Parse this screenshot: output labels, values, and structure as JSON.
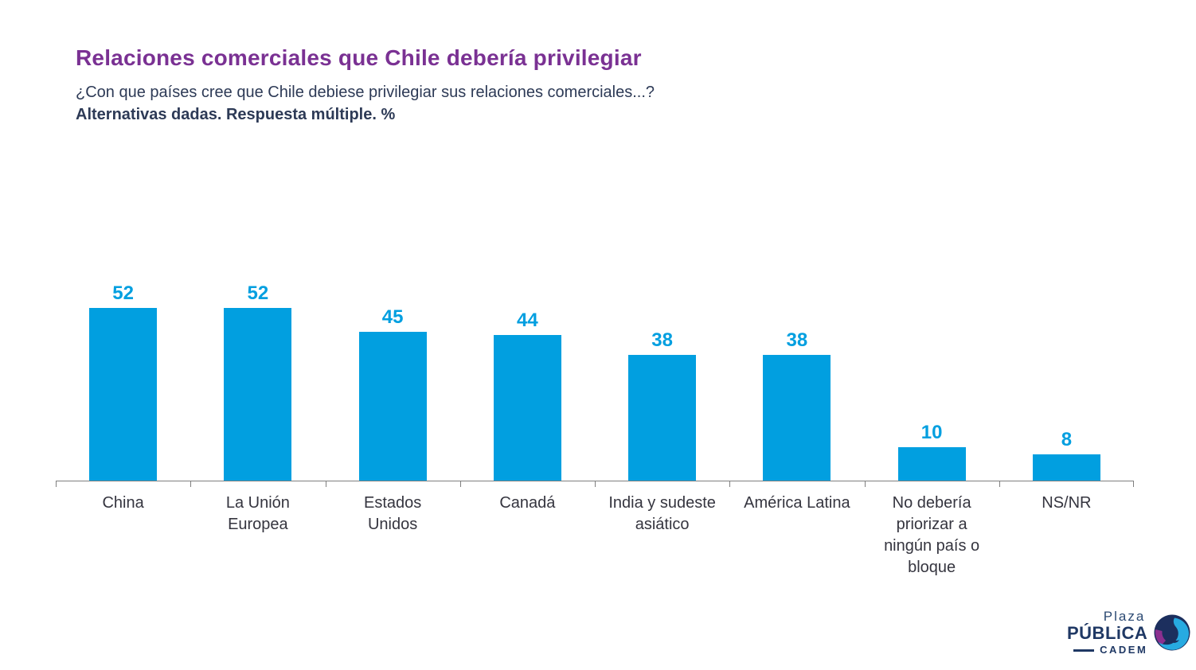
{
  "header": {
    "title": "Relaciones comerciales que Chile debería privilegiar",
    "subtitle": "¿Con que países cree que Chile debiese privilegiar sus relaciones comerciales...?",
    "note": "Alternativas dadas. Respuesta múltiple. %"
  },
  "chart_data": {
    "type": "bar",
    "title": "Relaciones comerciales que Chile debería privilegiar",
    "categories": [
      "China",
      "La Unión\nEuropea",
      "Estados\nUnidos",
      "Canadá",
      "India y sudeste\nasiático",
      "América Latina",
      "No debería\npriorizar a\nningún país o\nbloque",
      "NS/NR"
    ],
    "values": [
      52,
      52,
      45,
      44,
      38,
      38,
      10,
      8
    ],
    "unit": "%",
    "xlabel": "",
    "ylabel": "",
    "ylim": [
      0,
      60
    ],
    "grid": false,
    "legend": false,
    "value_labels": true,
    "bar_color": "#019FE0",
    "value_label_color": "#019FE0",
    "axis_color": "#7F7F7F"
  },
  "colors": {
    "title_purple": "#7A3193",
    "subtitle_navy": "#2D3A56",
    "axis_label_color": "#35353F",
    "logo_navy": "#1F3864",
    "logo_purple": "#8B2F8F",
    "logo_cyan": "#27AAE1"
  },
  "logo": {
    "line1": "Plaza",
    "line2": "PÚBLiCA",
    "line3": "CADEM"
  }
}
